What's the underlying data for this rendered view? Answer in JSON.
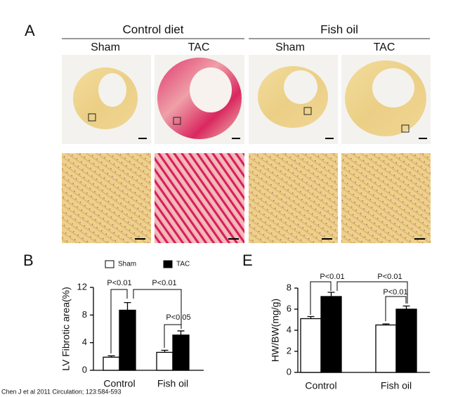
{
  "panels": {
    "a_label": "A",
    "group_headers": [
      "Control diet",
      "Fish oil"
    ],
    "column_labels": [
      "Sham",
      "TAC",
      "Sham",
      "TAC"
    ],
    "b_label": "B",
    "e_label": "E"
  },
  "citation": "Chen J et al 2011 Circulation; 123:584-593",
  "chart_data": [
    {
      "type": "bar",
      "ylabel": "LV Fibrotic area(%)",
      "categories": [
        "Control",
        "Fish oil"
      ],
      "series": [
        {
          "name": "Sham",
          "color": "#ffffff",
          "values": [
            1.9,
            2.6
          ],
          "errors": [
            0.2,
            0.3
          ]
        },
        {
          "name": "TAC",
          "color": "#000000",
          "values": [
            8.7,
            5.1
          ],
          "errors": [
            1.1,
            0.6
          ]
        }
      ],
      "ylim": [
        0,
        12
      ],
      "yticks": [
        0,
        4,
        8,
        12
      ],
      "annotations": [
        "P<0.01",
        "P<0.01",
        "P<0.05"
      ]
    },
    {
      "type": "bar",
      "ylabel": "HW/BW(mg/g)",
      "categories": [
        "Control",
        "Fish oil"
      ],
      "series": [
        {
          "color": "#ffffff",
          "values": [
            5.1,
            4.5
          ],
          "errors": [
            0.2,
            0.1
          ]
        },
        {
          "color": "#000000",
          "values": [
            7.2,
            6.0
          ],
          "errors": [
            0.4,
            0.3
          ]
        }
      ],
      "ylim": [
        0,
        8
      ],
      "yticks": [
        0,
        2,
        4,
        6,
        8
      ],
      "annotations": [
        "P<0.01",
        "P<0.01",
        "P<0.01"
      ]
    }
  ]
}
